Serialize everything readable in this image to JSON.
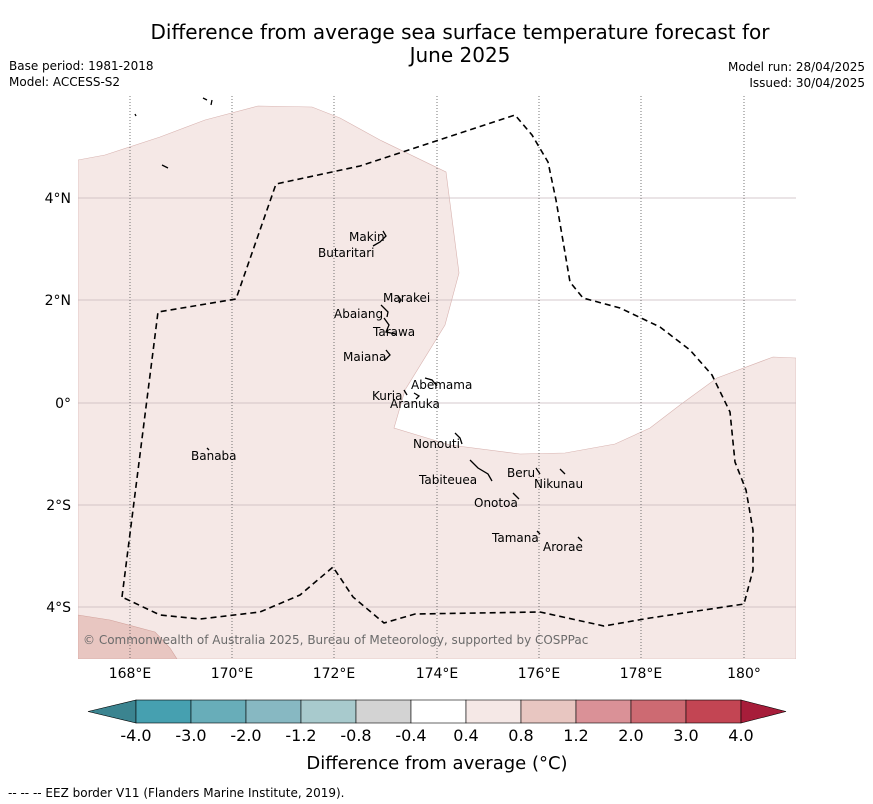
{
  "title_line1": "Difference from average sea surface temperature forecast for",
  "title_line2": "June 2025",
  "base_period": "Base period: 1981-2018",
  "model": "Model: ACCESS-S2",
  "model_run": "Model run: 28/04/2025",
  "issued": "Issued: 30/04/2025",
  "copyright": "© Commonwealth of Australia 2025, Bureau of Meteorology, supported by COSPPac",
  "lon_ticks": [
    "168°E",
    "170°E",
    "172°E",
    "174°E",
    "176°E",
    "178°E",
    "180°"
  ],
  "lat_ticks": [
    "4°N",
    "2°N",
    "0°",
    "2°S",
    "4°S"
  ],
  "places": {
    "makin": "Makin",
    "butaritari": "Butaritari",
    "marakei": "Marakei",
    "abaiang": "Abaiang",
    "tarawa": "Tarawa",
    "maiana": "Maiana",
    "abemama": "Abemama",
    "kuria": "Kuria",
    "aranuka": "Aranuka",
    "banaba": "Banaba",
    "nonouti": "Nonouti",
    "beru": "Beru",
    "tabiteuea": "Tabiteuea",
    "nikunau": "Nikunau",
    "onotoa": "Onotoa",
    "tamana": "Tamana",
    "arorae": "Arorae"
  },
  "colorbar": {
    "labels": [
      "-4.0",
      "-3.0",
      "-2.0",
      "-1.2",
      "-0.8",
      "-0.4",
      "0.4",
      "0.8",
      "1.2",
      "2.0",
      "3.0",
      "4.0"
    ],
    "colors": [
      "#46a0b0",
      "#68adb9",
      "#87b8c2",
      "#a8cacd",
      "#d3d3d3",
      "#ffffff",
      "#f5e8e6",
      "#e8c6c1",
      "#da9197",
      "#cd6a72",
      "#c34553"
    ],
    "under_color": "#3b8490",
    "over_color": "#a71d3a",
    "title": "Difference from average (°C)"
  },
  "map_colors": {
    "band_0_4_to_0_8": "#f5e8e6",
    "band_0_8_to_1_2": "#e8c6c1"
  },
  "footer": "--  --  -- EEZ border V11 (Flanders Marine Institute, 2019)."
}
